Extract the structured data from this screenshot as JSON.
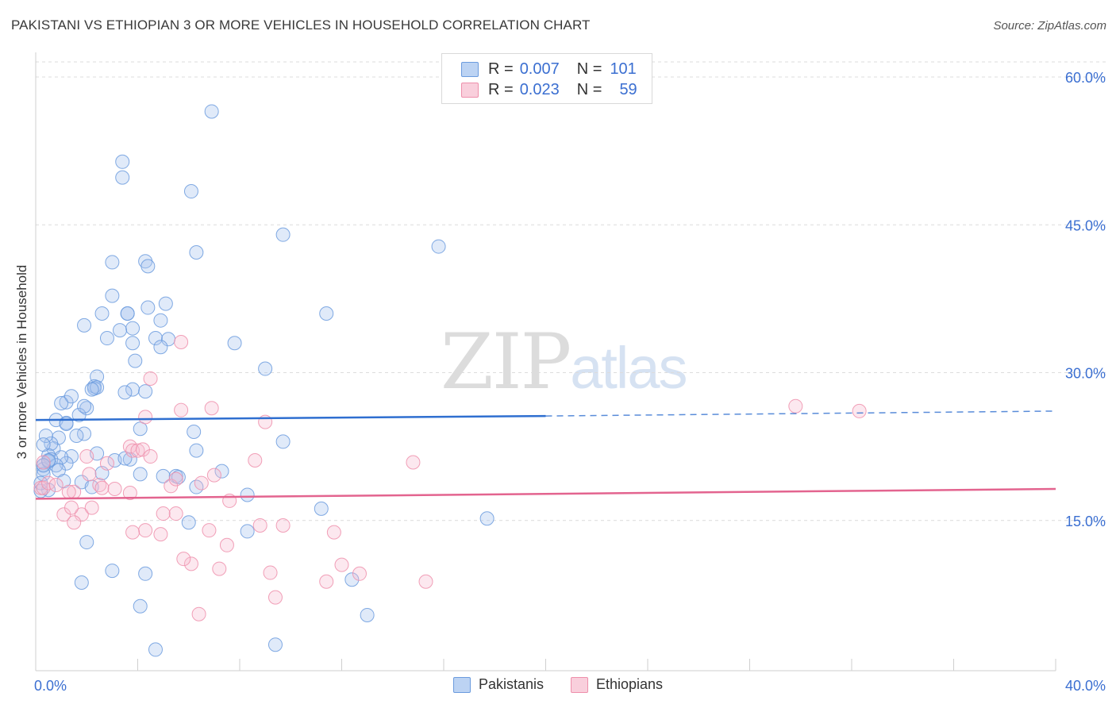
{
  "title": "PAKISTANI VS ETHIOPIAN 3 OR MORE VEHICLES IN HOUSEHOLD CORRELATION CHART",
  "source": "Source: ZipAtlas.com",
  "watermark": {
    "zip": "ZIP",
    "atlas": "atlas"
  },
  "legend": [
    {
      "r_label": "R =",
      "r_value": "0.007",
      "n_label": "N =",
      "n_value": "101"
    },
    {
      "r_label": "R =",
      "r_value": "0.023",
      "n_label": "N =",
      "n_value": "59"
    }
  ],
  "chart_data": {
    "type": "scatter",
    "title": "PAKISTANI VS ETHIOPIAN 3 OR MORE VEHICLES IN HOUSEHOLD CORRELATION CHART",
    "xlabel": "",
    "ylabel": "3 or more Vehicles in Household",
    "xlim": [
      0,
      40
    ],
    "ylim": [
      0,
      60
    ],
    "x_tick_labels": [
      "0.0%",
      "40.0%"
    ],
    "y_ticks": [
      15,
      30,
      45,
      60
    ],
    "y_tick_labels": [
      "15.0%",
      "30.0%",
      "45.0%",
      "60.0%"
    ],
    "grid": true,
    "colors": {
      "pakistanis": "#6b9bde",
      "ethiopians": "#ee8fab",
      "pak_line": "#2f6fd0",
      "eth_line": "#e3648f",
      "axis_text": "#3b6fd1",
      "grid": "#dcdcdc"
    },
    "series": [
      {
        "name": "Pakistanis",
        "x_values": [
          6.9,
          3.4,
          3.4,
          6.1,
          9.7,
          15.8,
          6.3,
          3.0,
          4.3,
          4.4,
          3.0,
          5.1,
          4.4,
          3.6,
          3.6,
          2.6,
          11.4,
          4.9,
          1.9,
          3.8,
          3.3,
          4.7,
          2.8,
          5.2,
          3.8,
          7.8,
          4.9,
          2.4,
          3.9,
          2.3,
          9.0,
          6.2,
          1.2,
          1.4,
          0.8,
          2.0,
          1.7,
          2.3,
          2.4,
          1.9,
          1.9,
          0.9,
          1.6,
          4.1,
          0.7,
          0.6,
          0.4,
          0.5,
          0.3,
          1.4,
          1.2,
          2.4,
          6.3,
          9.7,
          1.0,
          0.6,
          0.8,
          0.9,
          0.3,
          0.3,
          0.5,
          0.5,
          0.3,
          1.1,
          2.6,
          3.1,
          3.7,
          4.1,
          1.8,
          2.2,
          5.5,
          5.6,
          7.3,
          8.3,
          11.2,
          17.7,
          6.3,
          8.3,
          2.0,
          3.0,
          4.3,
          12.4,
          4.1,
          1.8,
          3.8,
          4.3,
          2.2,
          1.2,
          1.0,
          1.2,
          0.5,
          3.5,
          0.2,
          0.2,
          0.3,
          3.5,
          5.0,
          6.0,
          9.4,
          4.7,
          13.0
        ],
        "y_values": [
          56.5,
          51.4,
          49.8,
          48.4,
          44.0,
          42.8,
          42.2,
          41.2,
          41.3,
          40.8,
          37.8,
          37.0,
          36.6,
          36.0,
          36.0,
          36.0,
          36.0,
          35.3,
          34.8,
          34.5,
          34.3,
          33.5,
          33.5,
          33.4,
          33.0,
          33.0,
          32.6,
          29.6,
          31.2,
          28.6,
          30.4,
          24.0,
          27.0,
          27.6,
          25.2,
          26.4,
          25.7,
          28.4,
          28.5,
          26.6,
          23.8,
          23.4,
          23.6,
          24.3,
          22.3,
          22.8,
          23.6,
          21.6,
          22.7,
          21.5,
          20.8,
          21.8,
          22.1,
          23.0,
          21.4,
          21.2,
          20.6,
          20.1,
          20.6,
          20.2,
          21.0,
          21.1,
          19.7,
          19.0,
          19.8,
          21.1,
          21.2,
          19.7,
          18.9,
          18.4,
          19.5,
          19.4,
          20.0,
          17.6,
          16.2,
          15.2,
          18.4,
          13.9,
          12.8,
          9.9,
          9.6,
          9.0,
          6.3,
          8.7,
          28.3,
          28.1,
          28.3,
          24.9,
          26.9,
          24.8,
          18.1,
          28.0,
          18.0,
          18.8,
          20.6,
          21.3,
          19.5,
          14.8,
          2.4,
          1.9,
          5.4
        ]
      },
      {
        "name": "Ethiopians",
        "x_values": [
          29.8,
          32.3,
          5.7,
          4.5,
          4.3,
          6.9,
          3.7,
          3.8,
          9.0,
          5.7,
          8.6,
          14.8,
          0.3,
          0.2,
          0.3,
          0.5,
          0.8,
          1.5,
          2.0,
          4.0,
          4.2,
          4.5,
          2.8,
          2.1,
          2.5,
          2.6,
          5.3,
          5.5,
          6.5,
          7.0,
          7.6,
          1.3,
          1.8,
          1.5,
          3.1,
          3.7,
          5.5,
          5.0,
          8.8,
          9.7,
          2.2,
          1.1,
          1.4,
          4.3,
          4.9,
          6.8,
          7.5,
          3.8,
          11.7,
          12.0,
          6.1,
          5.8,
          7.2,
          9.2,
          9.4,
          11.4,
          12.7,
          15.3,
          6.4
        ],
        "y_values": [
          26.6,
          26.1,
          33.1,
          29.4,
          25.5,
          26.4,
          22.5,
          22.1,
          25.0,
          26.2,
          21.1,
          20.9,
          20.9,
          18.3,
          18.3,
          18.8,
          18.6,
          17.9,
          21.5,
          22.1,
          22.2,
          21.5,
          20.8,
          19.7,
          18.6,
          18.3,
          18.5,
          19.2,
          18.8,
          19.6,
          17.0,
          17.9,
          15.6,
          14.8,
          18.2,
          17.8,
          15.7,
          15.7,
          14.5,
          14.5,
          16.3,
          15.6,
          16.3,
          14.0,
          13.6,
          14.0,
          12.5,
          13.8,
          13.8,
          10.5,
          10.6,
          11.1,
          10.1,
          9.7,
          7.2,
          8.8,
          9.6,
          8.8,
          5.5
        ]
      }
    ],
    "trend_lines": [
      {
        "name": "Pakistanis",
        "x_solid": [
          0,
          20
        ],
        "y_solid": [
          25.2,
          25.6
        ],
        "x_dashed": [
          20,
          40
        ],
        "y_dashed": [
          25.6,
          26.1
        ]
      },
      {
        "name": "Ethiopians",
        "x": [
          0,
          40
        ],
        "y": [
          17.2,
          18.2
        ]
      }
    ]
  }
}
